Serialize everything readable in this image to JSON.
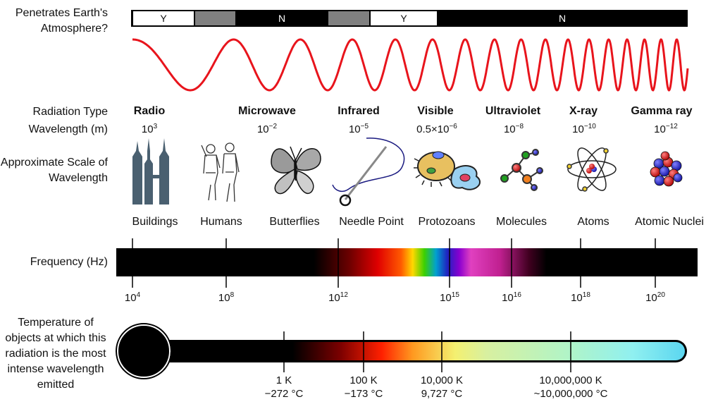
{
  "labels": {
    "atmosphere": "Penetrates Earth's Atmosphere?",
    "radiation_type": "Radiation Type",
    "wavelength": "Wavelength (m)",
    "scale": "Approximate Scale of Wavelength",
    "frequency": "Frequency (Hz)",
    "temperature": "Temperature of objects at which this radiation is the most intense wavelength emitted"
  },
  "atmosphere_bar": [
    {
      "text": "Y",
      "fill": "#ffffff"
    },
    {
      "text": "",
      "fill": "#808080"
    },
    {
      "text": "N",
      "fill": "#000000"
    },
    {
      "text": "",
      "fill": "#808080"
    },
    {
      "text": "Y",
      "fill": "#ffffff"
    },
    {
      "text": "N",
      "fill": "#000000"
    }
  ],
  "radiation_types": [
    {
      "name": "Radio",
      "wl_base": "10",
      "wl_exp": "3"
    },
    {
      "name": "Microwave",
      "wl_base": "10",
      "wl_exp": "−2"
    },
    {
      "name": "Infrared",
      "wl_base": "10",
      "wl_exp": "−5"
    },
    {
      "name": "Visible",
      "wl_base": "0.5×10",
      "wl_exp": "−6"
    },
    {
      "name": "Ultraviolet",
      "wl_base": "10",
      "wl_exp": "−8"
    },
    {
      "name": "X-ray",
      "wl_base": "10",
      "wl_exp": "−10"
    },
    {
      "name": "Gamma ray",
      "wl_base": "10",
      "wl_exp": "−12"
    }
  ],
  "scale_objects": [
    {
      "name": "Buildings",
      "icon": "buildings-icon"
    },
    {
      "name": "Humans",
      "icon": "humans-icon"
    },
    {
      "name": "Butterflies",
      "icon": "butterfly-icon"
    },
    {
      "name": "Needle Point",
      "icon": "needle-icon"
    },
    {
      "name": "Protozoans",
      "icon": "protozoan-icon"
    },
    {
      "name": "Molecules",
      "icon": "molecule-icon"
    },
    {
      "name": "Atoms",
      "icon": "atom-icon"
    },
    {
      "name": "Atomic Nuclei",
      "icon": "nucleus-icon"
    }
  ],
  "frequency_ticks": [
    {
      "base": "10",
      "exp": "4"
    },
    {
      "base": "10",
      "exp": "8"
    },
    {
      "base": "10",
      "exp": "12"
    },
    {
      "base": "10",
      "exp": "15"
    },
    {
      "base": "10",
      "exp": "16"
    },
    {
      "base": "10",
      "exp": "18"
    },
    {
      "base": "10",
      "exp": "20"
    }
  ],
  "temperature_ticks": [
    {
      "kelvin": "1 K",
      "celsius": "−272 °C"
    },
    {
      "kelvin": "100 K",
      "celsius": "−173 °C"
    },
    {
      "kelvin": "10,000 K",
      "celsius": "9,727 °C"
    },
    {
      "kelvin": "10,000,000 K",
      "celsius": "~10,000,000 °C"
    }
  ],
  "colors": {
    "wave": "#e8141c",
    "bar": "#000000",
    "thermometer_end": "#5bd6f0"
  }
}
